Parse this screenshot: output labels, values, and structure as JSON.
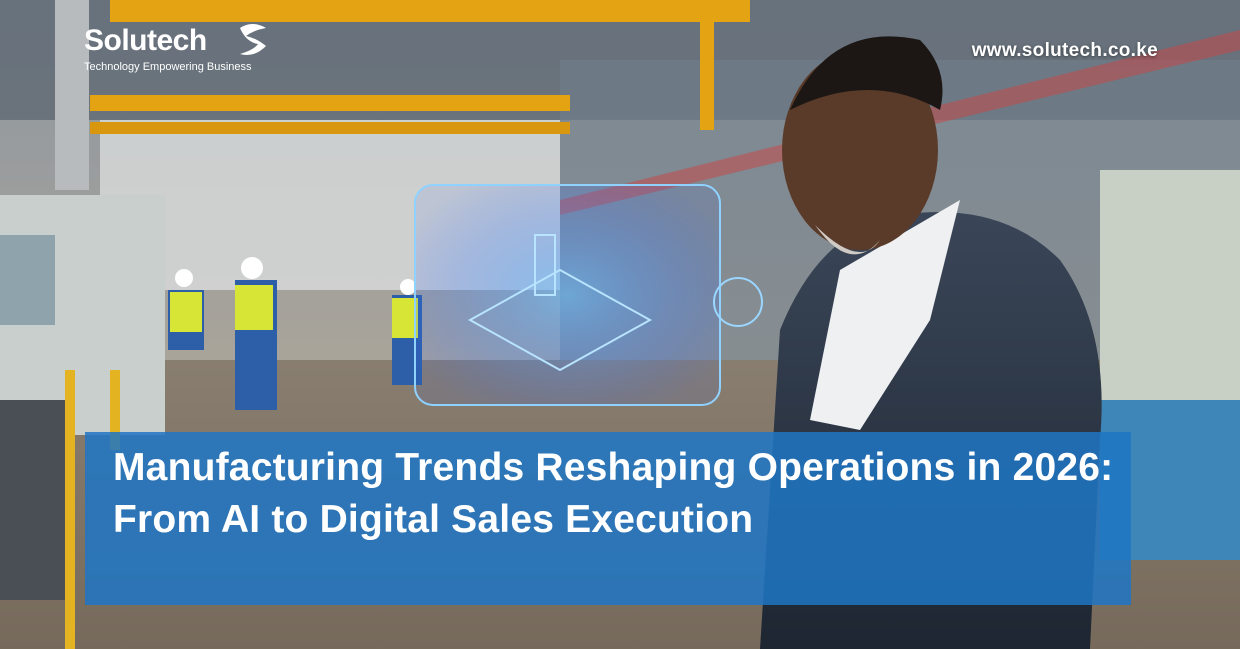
{
  "brand": {
    "name": "Solutech",
    "tagline": "Technology Empowering Business"
  },
  "website": "www.solutech.co.ke",
  "headline": "Manufacturing Trends Reshaping Operations in 2026: From AI to Digital Sales Execution"
}
